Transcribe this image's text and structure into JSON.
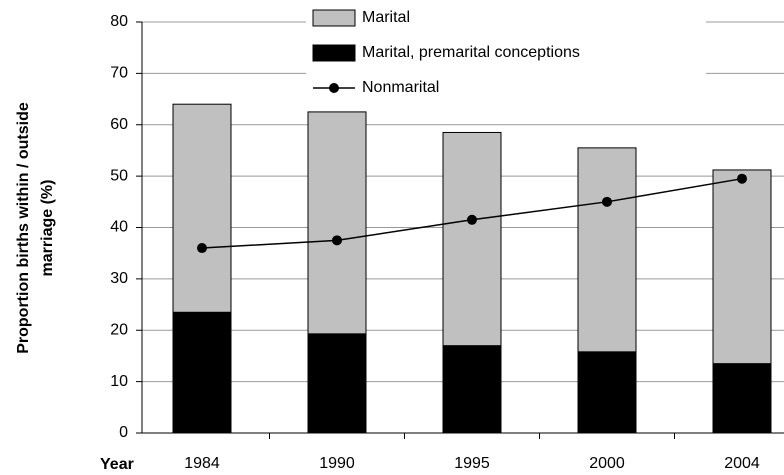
{
  "chart_data": {
    "type": "stacked_bar_line",
    "ylabel": [
      "Proportion births within / outside",
      "marriage (%)"
    ],
    "xlabel": "Year",
    "categories": [
      "1984",
      "1990",
      "1995",
      "2000",
      "2004"
    ],
    "series": [
      {
        "name": "Marital, premarital conceptions",
        "color": "#000000",
        "kind": "bar",
        "values": [
          23.5,
          19.3,
          17,
          15.8,
          13.5
        ]
      },
      {
        "name": "Marital",
        "color": "#c0c0c0",
        "kind": "bar",
        "values": [
          40.5,
          43.2,
          41.5,
          39.7,
          37.7
        ]
      },
      {
        "name": "Nonmarital",
        "color": "#000000",
        "kind": "line",
        "values": [
          36,
          37.5,
          41.5,
          45,
          49.5
        ]
      }
    ],
    "ylim": [
      0,
      80
    ],
    "yticks": [
      0,
      10,
      20,
      30,
      40,
      50,
      60,
      70,
      80
    ],
    "grid": true
  }
}
